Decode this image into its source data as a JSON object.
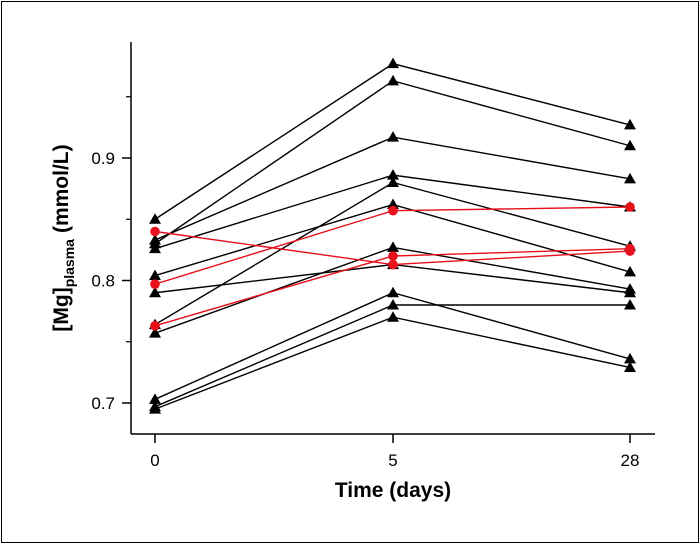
{
  "chart_data": {
    "type": "line",
    "title": "",
    "xlabel": "Time (days)",
    "ylabel": "[Mg]",
    "ylabel_subscript": "plasma",
    "ylabel_unit": "(mmol/L)",
    "x_categories": [
      "0",
      "5",
      "28"
    ],
    "ylim": [
      0.675,
      0.995
    ],
    "y_ticks": [
      {
        "value": 0.7,
        "label": "0.7"
      },
      {
        "value": 0.8,
        "label": "0.8"
      },
      {
        "value": 0.9,
        "label": "0.9"
      }
    ],
    "y_minor_ticks": [
      0.65,
      0.75,
      0.85,
      0.95
    ],
    "grid": false,
    "legend": "none",
    "colors": {
      "triangle_series": "#000000",
      "circle_series": "#e8101a"
    },
    "series": [
      {
        "marker": "triangle",
        "values": [
          0.85,
          0.977,
          0.927
        ]
      },
      {
        "marker": "triangle",
        "values": [
          0.83,
          0.963,
          0.91
        ]
      },
      {
        "marker": "triangle",
        "values": [
          0.833,
          0.917,
          0.883
        ]
      },
      {
        "marker": "triangle",
        "values": [
          0.826,
          0.886,
          0.86
        ]
      },
      {
        "marker": "triangle",
        "values": [
          0.764,
          0.88,
          0.828
        ]
      },
      {
        "marker": "triangle",
        "values": [
          0.804,
          0.862,
          0.807
        ]
      },
      {
        "marker": "triangle",
        "values": [
          0.757,
          0.827,
          0.793
        ]
      },
      {
        "marker": "triangle",
        "values": [
          0.79,
          0.813,
          0.79
        ]
      },
      {
        "marker": "triangle",
        "values": [
          0.703,
          0.79,
          0.736
        ]
      },
      {
        "marker": "triangle",
        "values": [
          0.697,
          0.78,
          0.78
        ]
      },
      {
        "marker": "triangle",
        "values": [
          0.695,
          0.77,
          0.729
        ]
      },
      {
        "marker": "circle",
        "values": [
          0.84,
          0.813,
          0.824
        ]
      },
      {
        "marker": "circle",
        "values": [
          0.797,
          0.857,
          0.86
        ]
      },
      {
        "marker": "circle",
        "values": [
          0.763,
          0.82,
          0.826
        ]
      }
    ]
  }
}
